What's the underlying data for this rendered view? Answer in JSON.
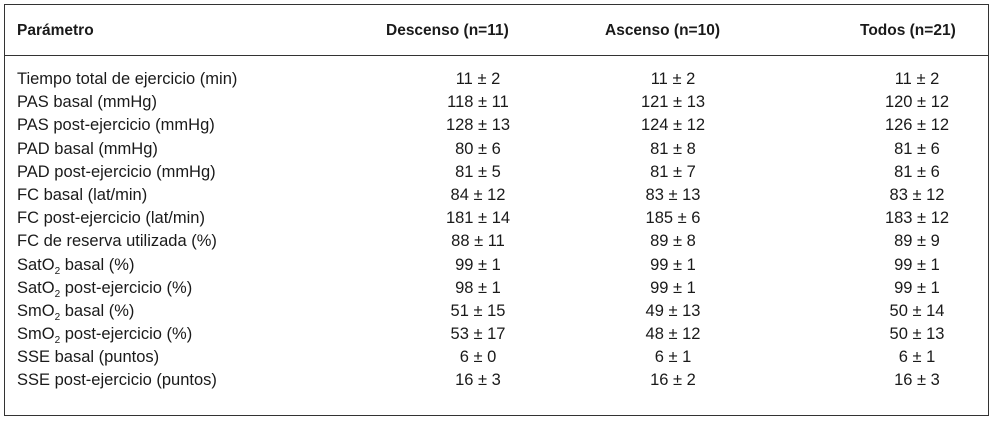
{
  "headers": {
    "param": "Parámetro",
    "descenso": "Descenso (n=11)",
    "ascenso": "Ascenso (n=10)",
    "todos": "Todos (n=21)"
  },
  "rows": [
    {
      "pre": "Tiempo total de ejercicio (min)",
      "sub": "",
      "post": "",
      "descenso": "11 ± 2",
      "ascenso": "11 ± 2",
      "todos": "11 ± 2"
    },
    {
      "pre": "PAS basal (mmHg)",
      "sub": "",
      "post": "",
      "descenso": "118 ± 11",
      "ascenso": "121 ± 13",
      "todos": "120 ± 12"
    },
    {
      "pre": "PAS post-ejercicio (mmHg)",
      "sub": "",
      "post": "",
      "descenso": "128 ± 13",
      "ascenso": "124 ± 12",
      "todos": "126 ± 12"
    },
    {
      "pre": "PAD basal (mmHg)",
      "sub": "",
      "post": "",
      "descenso": "80 ± 6",
      "ascenso": "81 ± 8",
      "todos": "81 ± 6"
    },
    {
      "pre": "PAD post-ejercicio (mmHg)",
      "sub": "",
      "post": "",
      "descenso": "81 ± 5",
      "ascenso": "81 ± 7",
      "todos": "81 ± 6"
    },
    {
      "pre": "FC basal (lat/min)",
      "sub": "",
      "post": "",
      "descenso": "84 ± 12",
      "ascenso": "83 ± 13",
      "todos": "83 ± 12"
    },
    {
      "pre": "FC post-ejercicio (lat/min)",
      "sub": "",
      "post": "",
      "descenso": "181 ± 14",
      "ascenso": "185 ± 6",
      "todos": "183 ± 12"
    },
    {
      "pre": "FC de reserva utilizada (%)",
      "sub": "",
      "post": "",
      "descenso": "88 ± 11",
      "ascenso": "89 ± 8",
      "todos": "89 ± 9"
    },
    {
      "pre": "SatO",
      "sub": "2",
      "post": " basal (%)",
      "descenso": "99 ± 1",
      "ascenso": "99 ± 1",
      "todos": "99 ± 1"
    },
    {
      "pre": "SatO",
      "sub": "2",
      "post": " post-ejercicio (%)",
      "descenso": "98 ± 1",
      "ascenso": "99 ± 1",
      "todos": "99 ± 1"
    },
    {
      "pre": "SmO",
      "sub": "2",
      "post": " basal (%)",
      "descenso": "51 ± 15",
      "ascenso": "49 ± 13",
      "todos": "50 ± 14"
    },
    {
      "pre": "SmO",
      "sub": "2",
      "post": " post-ejercicio (%)",
      "descenso": "53 ± 17",
      "ascenso": "48 ± 12",
      "todos": "50 ± 13"
    },
    {
      "pre": "SSE basal (puntos)",
      "sub": "",
      "post": "",
      "descenso": "6 ± 0",
      "ascenso": "6 ± 1",
      "todos": "6 ± 1"
    },
    {
      "pre": "SSE post-ejercicio (puntos)",
      "sub": "",
      "post": "",
      "descenso": "16 ± 3",
      "ascenso": "16 ± 2",
      "todos": "16 ± 3"
    }
  ]
}
